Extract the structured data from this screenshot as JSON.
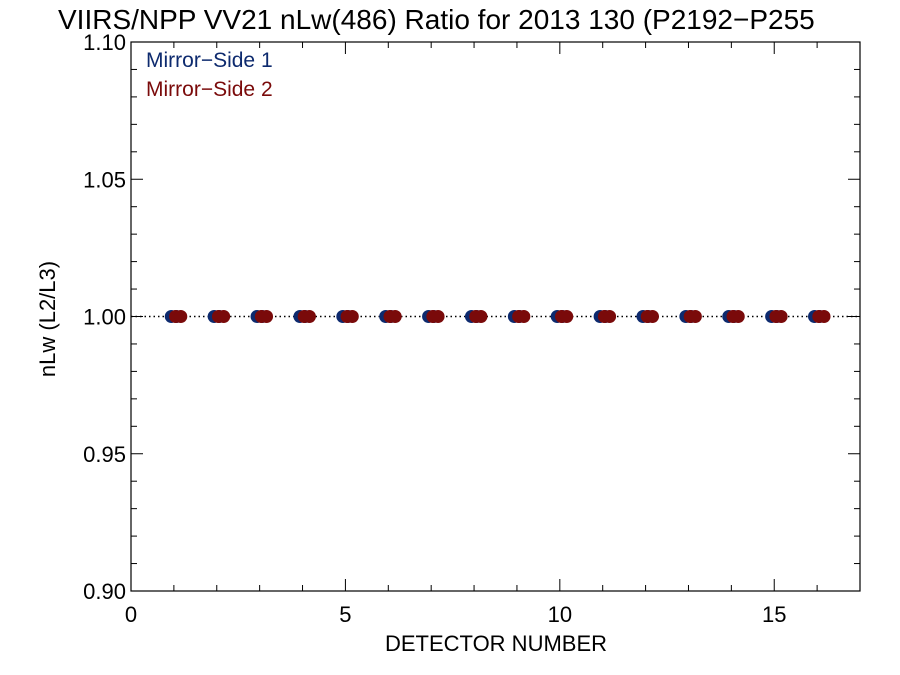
{
  "chart_data": {
    "type": "scatter",
    "title": "VIIRS/NPP VV21 nLw(486) Ratio for 2013 130 (P2192−P255",
    "xlabel": "DETECTOR NUMBER",
    "ylabel": "nLw (L2/L3)",
    "xlim": [
      0,
      17
    ],
    "ylim": [
      0.9,
      1.1
    ],
    "x_ticks": [
      0,
      5,
      10,
      15
    ],
    "x_tick_labels": [
      "0",
      "5",
      "10",
      "15"
    ],
    "y_ticks": [
      0.9,
      0.95,
      1.0,
      1.05,
      1.1
    ],
    "y_tick_labels": [
      "0.90",
      "0.95",
      "1.00",
      "1.05",
      "1.10"
    ],
    "grid": false,
    "reference_line": {
      "y": 1.0,
      "style": "dotted"
    },
    "legend_position": "top-left",
    "series": [
      {
        "name": "Mirror−Side 1",
        "color": "#0d2a6e",
        "x": [
          1,
          2,
          3,
          4,
          5,
          6,
          7,
          8,
          9,
          10,
          11,
          12,
          13,
          14,
          15,
          16
        ],
        "y": [
          1.0,
          1.0,
          1.0,
          1.0,
          1.0,
          1.0,
          1.0,
          1.0,
          1.0,
          1.0,
          1.0,
          1.0,
          1.0,
          1.0,
          1.0,
          1.0
        ]
      },
      {
        "name": "Mirror−Side 2",
        "color": "#7a0a0a",
        "x": [
          1.1,
          2.1,
          3.1,
          4.1,
          5.1,
          6.1,
          7.1,
          8.1,
          9.1,
          10.1,
          11.1,
          12.1,
          13.1,
          14.1,
          15.1,
          16.1
        ],
        "y": [
          1.0,
          1.0,
          1.0,
          1.0,
          1.0,
          1.0,
          1.0,
          1.0,
          1.0,
          1.0,
          1.0,
          1.0,
          1.0,
          1.0,
          1.0,
          1.0
        ]
      }
    ]
  }
}
